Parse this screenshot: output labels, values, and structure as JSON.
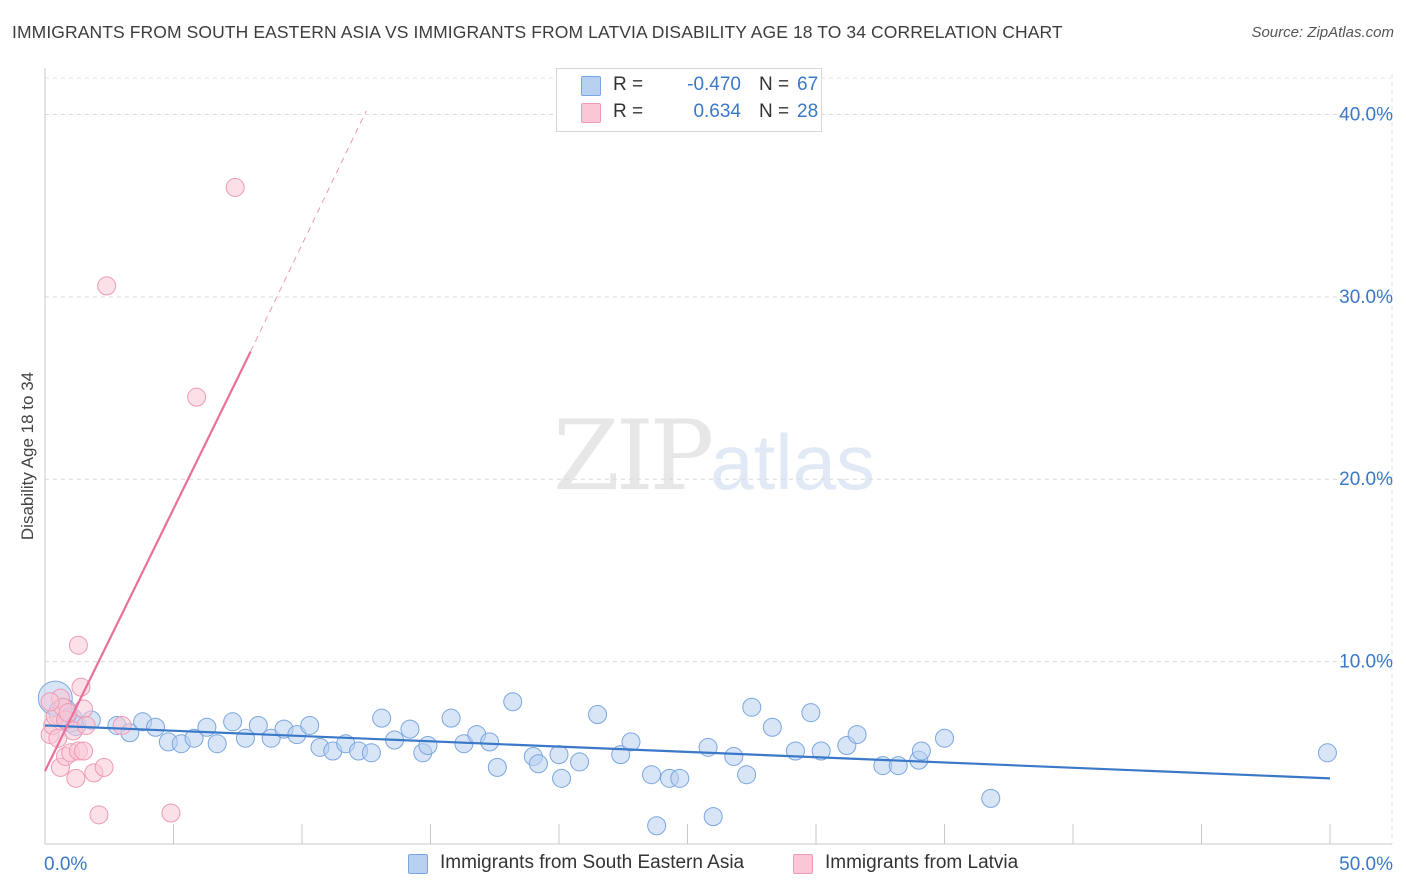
{
  "header": {
    "title": "IMMIGRANTS FROM SOUTH EASTERN ASIA VS IMMIGRANTS FROM LATVIA DISABILITY AGE 18 TO 34 CORRELATION CHART",
    "source": "Source: ZipAtlas.com"
  },
  "watermark": {
    "zip": "ZIP",
    "atlas": "atlas"
  },
  "legend": {
    "r_label": "R =",
    "n_label": "N =",
    "items": [
      {
        "r": "-0.470",
        "n": "67",
        "color_fill": "#b8d0f0",
        "color_stroke": "#7aa6e0"
      },
      {
        "r": "0.634",
        "n": "28",
        "color_fill": "#f9c7d6",
        "color_stroke": "#ee9ab4"
      }
    ]
  },
  "chart_data": {
    "type": "scatter",
    "title": "IMMIGRANTS FROM SOUTH EASTERN ASIA VS IMMIGRANTS FROM LATVIA DISABILITY AGE 18 TO 34 CORRELATION CHART",
    "xlabel": "",
    "ylabel": "Disability Age 18 to 34",
    "xlim": [
      0,
      50
    ],
    "ylim": [
      0,
      42
    ],
    "x_tick_labels": [
      "0.0%",
      "50.0%"
    ],
    "y_ticks": [
      10,
      20,
      30,
      40
    ],
    "y_tick_labels": [
      "10.0%",
      "20.0%",
      "30.0%",
      "40.0%"
    ],
    "grid": true,
    "series": [
      {
        "name": "Immigrants from South Eastern Asia",
        "color": "#3a78c8",
        "fill": "#b8d0f0",
        "stroke": "#7aa6e0",
        "trend": {
          "x0": 0,
          "y0": 6.5,
          "x1": 50,
          "y1": 3.6
        },
        "points": [
          {
            "x": 0.4,
            "y": 8.0,
            "s": 17
          },
          {
            "x": 0.7,
            "y": 7.2,
            "s": 14
          },
          {
            "x": 1.0,
            "y": 6.8,
            "s": 12
          },
          {
            "x": 1.2,
            "y": 6.5,
            "s": 10
          },
          {
            "x": 1.8,
            "y": 6.8,
            "s": 9
          },
          {
            "x": 2.8,
            "y": 6.5,
            "s": 9
          },
          {
            "x": 3.3,
            "y": 6.1,
            "s": 9
          },
          {
            "x": 3.8,
            "y": 6.7,
            "s": 9
          },
          {
            "x": 4.3,
            "y": 6.4,
            "s": 9
          },
          {
            "x": 4.8,
            "y": 5.6,
            "s": 9
          },
          {
            "x": 5.3,
            "y": 5.5,
            "s": 9
          },
          {
            "x": 5.8,
            "y": 5.8,
            "s": 9
          },
          {
            "x": 6.3,
            "y": 6.4,
            "s": 9
          },
          {
            "x": 6.7,
            "y": 5.5,
            "s": 9
          },
          {
            "x": 7.3,
            "y": 6.7,
            "s": 9
          },
          {
            "x": 7.8,
            "y": 5.8,
            "s": 9
          },
          {
            "x": 8.3,
            "y": 6.5,
            "s": 9
          },
          {
            "x": 8.8,
            "y": 5.8,
            "s": 9
          },
          {
            "x": 9.3,
            "y": 6.3,
            "s": 9
          },
          {
            "x": 9.8,
            "y": 6.0,
            "s": 9
          },
          {
            "x": 10.3,
            "y": 6.5,
            "s": 9
          },
          {
            "x": 10.7,
            "y": 5.3,
            "s": 9
          },
          {
            "x": 11.2,
            "y": 5.1,
            "s": 9
          },
          {
            "x": 11.7,
            "y": 5.5,
            "s": 9
          },
          {
            "x": 12.2,
            "y": 5.1,
            "s": 9
          },
          {
            "x": 12.7,
            "y": 5.0,
            "s": 9
          },
          {
            "x": 13.1,
            "y": 6.9,
            "s": 9
          },
          {
            "x": 13.6,
            "y": 5.7,
            "s": 9
          },
          {
            "x": 14.2,
            "y": 6.3,
            "s": 9
          },
          {
            "x": 14.7,
            "y": 5.0,
            "s": 9
          },
          {
            "x": 14.9,
            "y": 5.4,
            "s": 9
          },
          {
            "x": 15.8,
            "y": 6.9,
            "s": 9
          },
          {
            "x": 16.3,
            "y": 5.5,
            "s": 9
          },
          {
            "x": 16.8,
            "y": 6.0,
            "s": 9
          },
          {
            "x": 17.3,
            "y": 5.6,
            "s": 9
          },
          {
            "x": 17.6,
            "y": 4.2,
            "s": 9
          },
          {
            "x": 18.2,
            "y": 7.8,
            "s": 9
          },
          {
            "x": 19.0,
            "y": 4.8,
            "s": 9
          },
          {
            "x": 19.2,
            "y": 4.4,
            "s": 9
          },
          {
            "x": 20.0,
            "y": 4.9,
            "s": 9
          },
          {
            "x": 20.1,
            "y": 3.6,
            "s": 9
          },
          {
            "x": 20.8,
            "y": 4.5,
            "s": 9
          },
          {
            "x": 21.5,
            "y": 7.1,
            "s": 9
          },
          {
            "x": 22.4,
            "y": 4.9,
            "s": 9
          },
          {
            "x": 22.8,
            "y": 5.6,
            "s": 9
          },
          {
            "x": 23.6,
            "y": 3.8,
            "s": 9
          },
          {
            "x": 23.8,
            "y": 1.0,
            "s": 9
          },
          {
            "x": 24.3,
            "y": 3.6,
            "s": 9
          },
          {
            "x": 24.7,
            "y": 3.6,
            "s": 9
          },
          {
            "x": 25.8,
            "y": 5.3,
            "s": 9
          },
          {
            "x": 26.0,
            "y": 1.5,
            "s": 9
          },
          {
            "x": 26.8,
            "y": 4.8,
            "s": 9
          },
          {
            "x": 27.3,
            "y": 3.8,
            "s": 9
          },
          {
            "x": 27.5,
            "y": 7.5,
            "s": 9
          },
          {
            "x": 28.3,
            "y": 6.4,
            "s": 9
          },
          {
            "x": 29.2,
            "y": 5.1,
            "s": 9
          },
          {
            "x": 29.8,
            "y": 7.2,
            "s": 9
          },
          {
            "x": 30.2,
            "y": 5.1,
            "s": 9
          },
          {
            "x": 31.2,
            "y": 5.4,
            "s": 9
          },
          {
            "x": 31.6,
            "y": 6.0,
            "s": 9
          },
          {
            "x": 32.6,
            "y": 4.3,
            "s": 9
          },
          {
            "x": 33.2,
            "y": 4.3,
            "s": 9
          },
          {
            "x": 34.0,
            "y": 4.6,
            "s": 9
          },
          {
            "x": 34.1,
            "y": 5.1,
            "s": 9
          },
          {
            "x": 35.0,
            "y": 5.8,
            "s": 9
          },
          {
            "x": 36.8,
            "y": 2.5,
            "s": 9
          },
          {
            "x": 49.9,
            "y": 5.0,
            "s": 9
          }
        ]
      },
      {
        "name": "Immigrants from Latvia",
        "color": "#e8709a",
        "fill": "#f9c7d6",
        "stroke": "#ee9ab4",
        "trend": {
          "x0": 0,
          "y0": 4.0,
          "x1": 8.0,
          "y1": 27.0
        },
        "trend_extension": {
          "x0": 8.0,
          "y0": 27.0,
          "x1": 12.5,
          "y1": 40.2
        },
        "points": [
          {
            "x": 0.2,
            "y": 6.0,
            "s": 9
          },
          {
            "x": 0.3,
            "y": 6.5,
            "s": 9
          },
          {
            "x": 0.4,
            "y": 7.0,
            "s": 9
          },
          {
            "x": 0.5,
            "y": 5.8,
            "s": 9
          },
          {
            "x": 0.6,
            "y": 8.0,
            "s": 9
          },
          {
            "x": 0.7,
            "y": 7.5,
            "s": 9
          },
          {
            "x": 0.8,
            "y": 6.8,
            "s": 9
          },
          {
            "x": 0.9,
            "y": 7.2,
            "s": 9
          },
          {
            "x": 0.6,
            "y": 4.2,
            "s": 9
          },
          {
            "x": 0.8,
            "y": 4.8,
            "s": 9
          },
          {
            "x": 1.0,
            "y": 5.0,
            "s": 9
          },
          {
            "x": 1.1,
            "y": 6.2,
            "s": 9
          },
          {
            "x": 1.2,
            "y": 3.6,
            "s": 9
          },
          {
            "x": 1.3,
            "y": 5.1,
            "s": 9
          },
          {
            "x": 1.3,
            "y": 10.9,
            "s": 9
          },
          {
            "x": 1.4,
            "y": 8.6,
            "s": 9
          },
          {
            "x": 1.5,
            "y": 7.4,
            "s": 9
          },
          {
            "x": 1.6,
            "y": 6.5,
            "s": 9
          },
          {
            "x": 1.5,
            "y": 5.1,
            "s": 9
          },
          {
            "x": 1.9,
            "y": 3.9,
            "s": 9
          },
          {
            "x": 2.1,
            "y": 1.6,
            "s": 9
          },
          {
            "x": 2.3,
            "y": 4.2,
            "s": 9
          },
          {
            "x": 2.4,
            "y": 30.6,
            "s": 9
          },
          {
            "x": 3.0,
            "y": 6.5,
            "s": 9
          },
          {
            "x": 4.9,
            "y": 1.7,
            "s": 9
          },
          {
            "x": 5.9,
            "y": 24.5,
            "s": 9
          },
          {
            "x": 7.4,
            "y": 36.0,
            "s": 9
          },
          {
            "x": 0.2,
            "y": 7.8,
            "s": 9
          }
        ]
      }
    ]
  }
}
